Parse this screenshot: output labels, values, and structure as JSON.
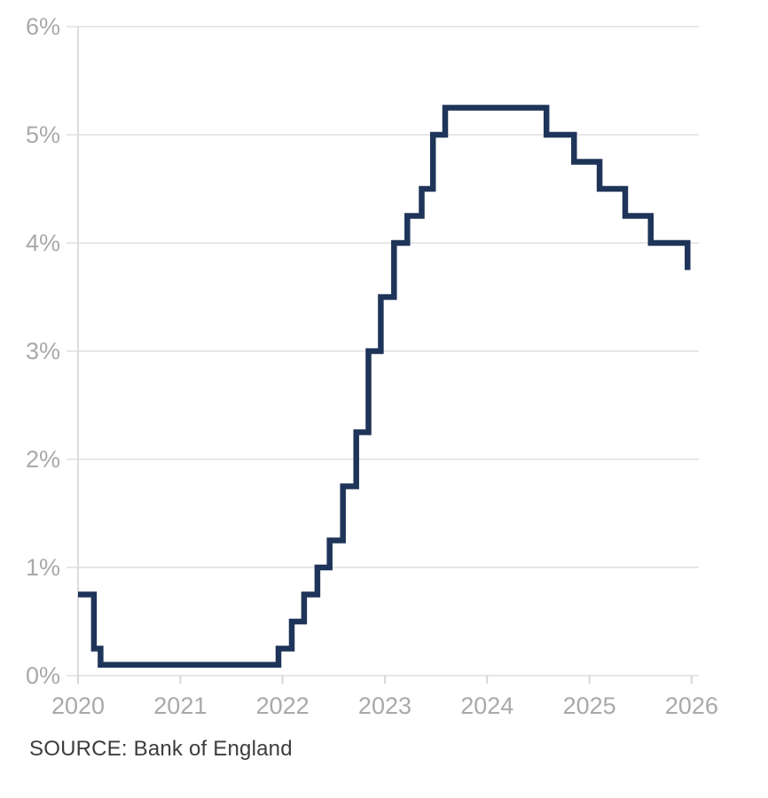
{
  "page": {
    "background_color": "#ffffff"
  },
  "source": {
    "label": "SOURCE: Bank of England"
  },
  "chart_data": {
    "type": "line",
    "subtype": "step",
    "title": "",
    "xlabel": "",
    "ylabel": "",
    "grid": true,
    "legend": "none",
    "line_color": "#1e3459",
    "line_width": 6.5,
    "grid_color": "#e7e7e7",
    "axis_color": "#dcdcdc",
    "tick_color": "#d6d6d6",
    "tick_label_color": "#a9a9a9",
    "xlim": [
      2020,
      2026.07
    ],
    "ylim": [
      0,
      6
    ],
    "x_ticks": [
      2020,
      2021,
      2022,
      2023,
      2024,
      2025,
      2026
    ],
    "x_tick_labels": [
      "2020",
      "2021",
      "2022",
      "2023",
      "2024",
      "2025",
      "2026"
    ],
    "y_ticks": [
      0,
      1,
      2,
      3,
      4,
      5,
      6
    ],
    "y_tick_labels": [
      "0%",
      "1%",
      "2%",
      "3%",
      "4%",
      "5%",
      "6%"
    ],
    "points": [
      [
        2020.0,
        0.75
      ],
      [
        2020.155,
        0.25
      ],
      [
        2020.22,
        0.1
      ],
      [
        2021.96,
        0.25
      ],
      [
        2022.09,
        0.5
      ],
      [
        2022.21,
        0.75
      ],
      [
        2022.34,
        1.0
      ],
      [
        2022.46,
        1.25
      ],
      [
        2022.59,
        1.75
      ],
      [
        2022.72,
        2.25
      ],
      [
        2022.84,
        3.0
      ],
      [
        2022.96,
        3.5
      ],
      [
        2023.09,
        4.0
      ],
      [
        2023.22,
        4.25
      ],
      [
        2023.36,
        4.5
      ],
      [
        2023.47,
        5.0
      ],
      [
        2023.59,
        5.25
      ],
      [
        2024.58,
        5.0
      ],
      [
        2024.85,
        4.75
      ],
      [
        2025.1,
        4.5
      ],
      [
        2025.35,
        4.25
      ],
      [
        2025.6,
        4.0
      ],
      [
        2025.96,
        3.75
      ]
    ]
  }
}
